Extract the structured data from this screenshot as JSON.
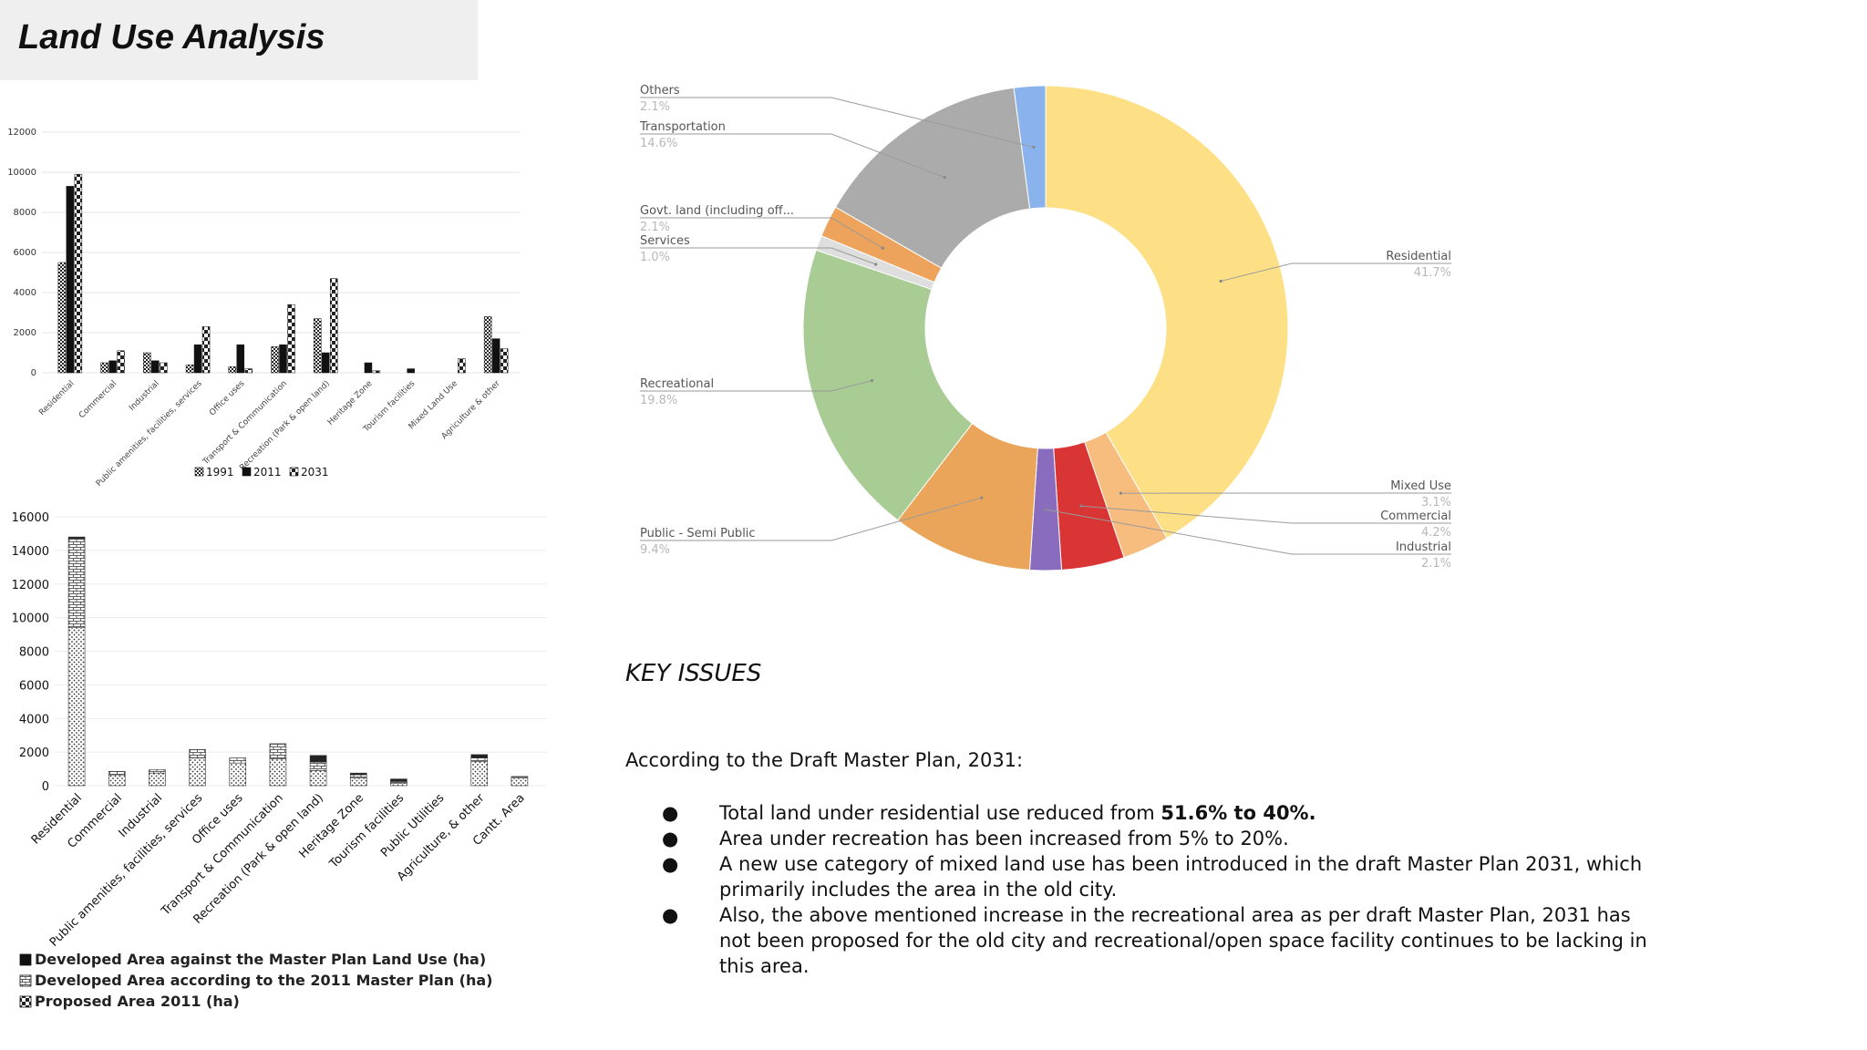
{
  "page": {
    "title": "Land Use Analysis"
  },
  "chart_data": [
    {
      "type": "bar",
      "title": "",
      "categories": [
        "Residential",
        "Commercial",
        "Industrial",
        "Public amenities, facilities, services",
        "Office uses",
        "Transport & Communication",
        "Recreation (Park & open land)",
        "Heritage Zone",
        "Tourism facilities",
        "Mixed Land Use",
        "Agriculture & other"
      ],
      "series": [
        {
          "name": "1991",
          "values": [
            5500,
            500,
            1000,
            400,
            300,
            1300,
            2700,
            0,
            0,
            0,
            2800
          ]
        },
        {
          "name": "2011",
          "values": [
            9300,
            600,
            600,
            1400,
            1400,
            1400,
            1000,
            500,
            200,
            0,
            1700
          ]
        },
        {
          "name": "2031",
          "values": [
            9900,
            1100,
            500,
            2300,
            200,
            3400,
            4700,
            100,
            0,
            700,
            1200
          ]
        }
      ],
      "y_ticks": [
        "12000",
        "10000",
        "8000",
        "6000",
        "4000",
        "2000",
        "0"
      ],
      "ylim": [
        0,
        12000
      ],
      "legend_position": "bottom",
      "grid": true
    },
    {
      "type": "bar",
      "stacked": true,
      "title": "",
      "categories": [
        "Residential",
        "Commercial",
        "Industrial",
        "Public amenities, facilities, services",
        "Office uses",
        "Transport & Communication",
        "Recreation (Park & open land)",
        "Heritage Zone",
        "Tourism facilities",
        "Public Utilities",
        "Agriculture, & other",
        "Cantt. Area"
      ],
      "series": [
        {
          "name": "Developed Area against the Master Plan Land Use (ha)",
          "values": [
            100,
            0,
            0,
            0,
            0,
            0,
            400,
            100,
            150,
            0,
            200,
            0
          ]
        },
        {
          "name": "Developed Area according to the 2011 Master Plan (ha)",
          "values": [
            5300,
            200,
            200,
            500,
            300,
            900,
            500,
            200,
            100,
            0,
            200,
            100
          ]
        },
        {
          "name": "Proposed Area 2011 (ha)",
          "values": [
            9400,
            650,
            750,
            1650,
            1350,
            1600,
            900,
            450,
            150,
            0,
            1450,
            450
          ]
        }
      ],
      "y_ticks": [
        "16000",
        "14000",
        "12000",
        "10000",
        "8000",
        "6000",
        "4000",
        "2000",
        "0"
      ],
      "ylim": [
        0,
        16000
      ],
      "legend_position": "bottom",
      "grid": true
    },
    {
      "type": "pie",
      "donut": true,
      "title": "",
      "slices": [
        {
          "label": "Residential",
          "value": 41.7,
          "pct": "41.7%",
          "color": "#fde085"
        },
        {
          "label": "Mixed Use",
          "value": 3.1,
          "pct": "3.1%",
          "color": "#f6bd7e"
        },
        {
          "label": "Commercial",
          "value": 4.2,
          "pct": "4.2%",
          "color": "#d93535"
        },
        {
          "label": "Industrial",
          "value": 2.1,
          "pct": "2.1%",
          "color": "#8a6cbe"
        },
        {
          "label": "Public - Semi Public",
          "value": 9.4,
          "pct": "9.4%",
          "color": "#eaa55a"
        },
        {
          "label": "Recreational",
          "value": 19.8,
          "pct": "19.8%",
          "color": "#a8cc93"
        },
        {
          "label": "Services",
          "value": 1.0,
          "pct": "1.0%",
          "color": "#dedede"
        },
        {
          "label": "Govt. land (including off...",
          "value": 2.1,
          "pct": "2.1%",
          "color": "#eda35b"
        },
        {
          "label": "Transportation",
          "value": 14.6,
          "pct": "14.6%",
          "color": "#ababab"
        },
        {
          "label": "Others",
          "value": 2.1,
          "pct": "2.1%",
          "color": "#8ab3ee"
        }
      ]
    }
  ],
  "key_issues": {
    "heading": "KEY ISSUES",
    "intro": "According to the Draft Master Plan, 2031:",
    "bullet": "●",
    "item1_pre": "Total land under residential use  reduced from ",
    "item1_bold": "51.6% to 40%.",
    "item2": "Area under recreation has been increased from 5% to 20%.",
    "item3": "A new use category of mixed land use has been introduced in the draft Master Plan 2031, which primarily includes the area in the old city.",
    "item4": " Also, the above mentioned increase in the recreational area as per draft Master Plan, 2031 has not been proposed for the old city and recreational/open space facility continues to be lacking in this area."
  }
}
